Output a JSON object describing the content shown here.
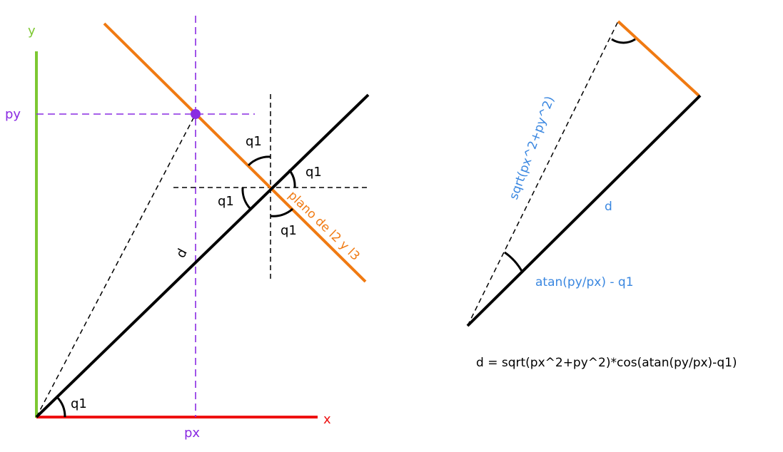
{
  "left_diagram": {
    "axis_y_label": "y",
    "axis_x_label": "x",
    "py_label": "py",
    "px_label": "px",
    "d_label": "d",
    "plane_label": "plano de l2 y l3",
    "angle_labels": {
      "origin": "q1",
      "top": "q1",
      "right": "q1",
      "left": "q1",
      "bottom": "q1"
    }
  },
  "right_diagram": {
    "hypotenuse_label": "sqrt(px^2+py^2)",
    "d_label": "d",
    "angle_label": "atan(py/px) - q1",
    "formula": "d = sqrt(px^2+py^2)*cos(atan(py/px)-q1)"
  },
  "colors": {
    "y_axis": "#7dc832",
    "x_axis": "#ee1111",
    "purple": "#8a2be2",
    "orange": "#f07a12",
    "blue_text": "#3a87e0",
    "black": "#000000"
  }
}
